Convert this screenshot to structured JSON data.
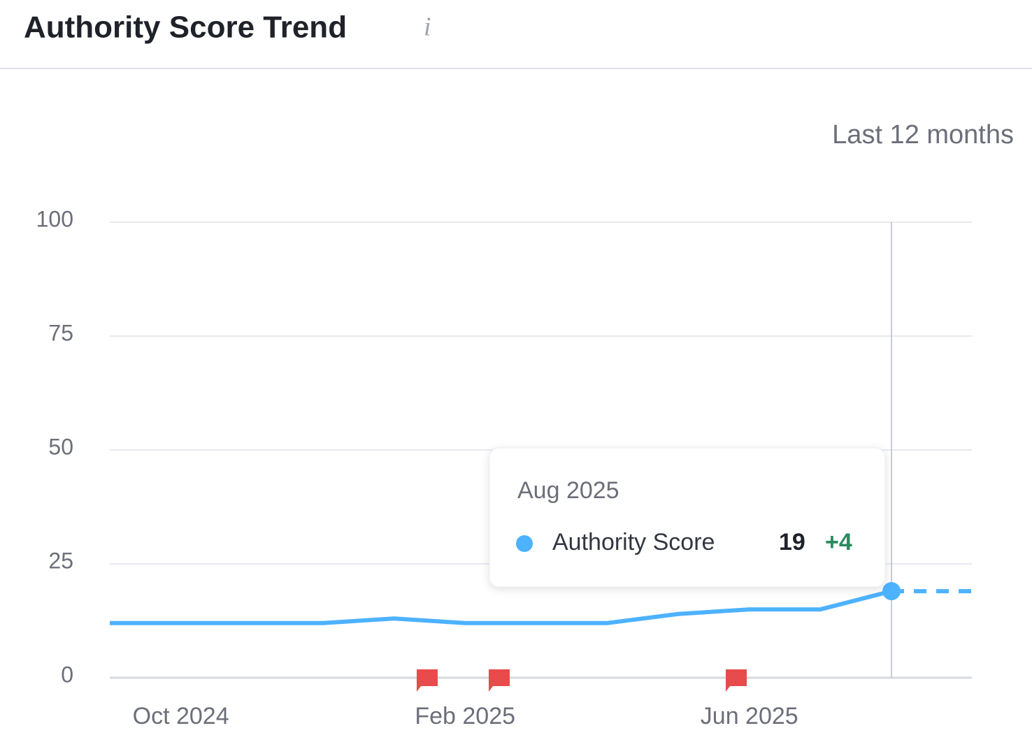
{
  "chart_data": {
    "type": "line",
    "title": "Authority Score Trend",
    "period": "Last 12 months",
    "categories": [
      null,
      "Oct 2024",
      null,
      null,
      null,
      "Feb 2025",
      null,
      null,
      null,
      "Jun 2025",
      null,
      null
    ],
    "series": [
      {
        "name": "Authority Score",
        "color": "#4db2ff",
        "values": [
          12,
          12,
          12,
          12,
          13,
          12,
          12,
          12,
          14,
          15,
          15,
          19
        ]
      }
    ],
    "ylim": [
      0,
      100
    ],
    "yticks": [
      0,
      25,
      50,
      75,
      100
    ],
    "grid": true,
    "tooltip": {
      "title": "Aug 2025",
      "change": "+4"
    }
  }
}
